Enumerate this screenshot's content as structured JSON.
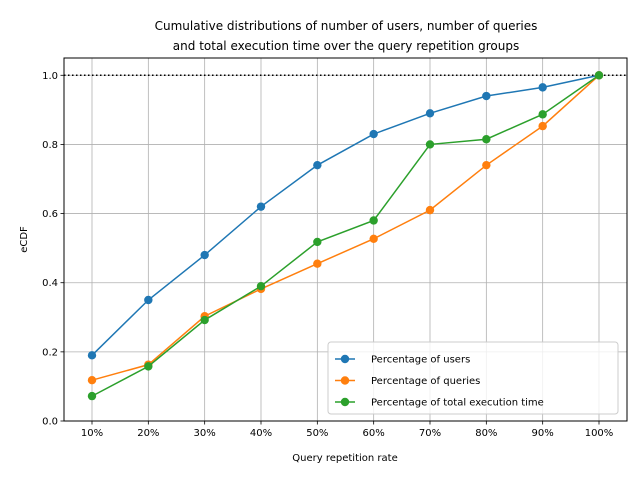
{
  "chart_data": {
    "type": "line",
    "title_lines": [
      "Cumulative distributions of number of users, number of queries",
      "and total execution time over the query repetition groups"
    ],
    "xlabel": "Query repetition rate",
    "ylabel": "eCDF",
    "categories": [
      "10%",
      "20%",
      "30%",
      "40%",
      "50%",
      "60%",
      "70%",
      "80%",
      "90%",
      "100%"
    ],
    "ylim": [
      0,
      1.05
    ],
    "yticks": [
      "0.0",
      "0.2",
      "0.4",
      "0.6",
      "0.8",
      "1.0"
    ],
    "ytick_values": [
      0.0,
      0.2,
      0.4,
      0.6,
      0.8,
      1.0
    ],
    "reference_line": {
      "y": 1.0,
      "style": "dotted",
      "color": "#000000"
    },
    "grid": true,
    "legend_position": "lower-right",
    "series": [
      {
        "name": "Percentage of users",
        "color": "#1f77b4",
        "values": [
          0.19,
          0.35,
          0.48,
          0.62,
          0.74,
          0.83,
          0.89,
          0.94,
          0.965,
          1.0
        ]
      },
      {
        "name": "Percentage of queries",
        "color": "#ff7f0e",
        "values": [
          0.118,
          0.163,
          0.303,
          0.382,
          0.455,
          0.527,
          0.61,
          0.74,
          0.853,
          1.0
        ]
      },
      {
        "name": "Percentage of total execution time",
        "color": "#2ca02c",
        "values": [
          0.072,
          0.158,
          0.292,
          0.39,
          0.518,
          0.58,
          0.8,
          0.815,
          0.887,
          1.0
        ]
      }
    ]
  }
}
